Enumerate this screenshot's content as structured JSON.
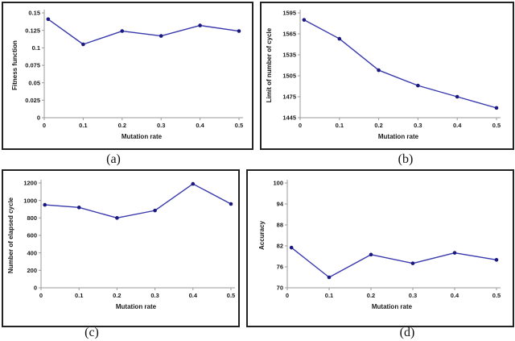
{
  "style": {
    "line_color": "#3939ae",
    "marker_color": "#191980",
    "axis_color": "#9a9a9a",
    "text_color": "#1a1a1a",
    "panel_border_color": "#232323",
    "background": "#ffffff"
  },
  "chart_data": [
    {
      "id": "a",
      "caption": "(a)",
      "type": "line",
      "xlabel": "Mutation rate",
      "ylabel": "Fitness function",
      "x": [
        0.01,
        0.1,
        0.2,
        0.3,
        0.4,
        0.5
      ],
      "values": [
        0.141,
        0.105,
        0.124,
        0.117,
        0.132,
        0.124
      ],
      "xlim": [
        0,
        0.5
      ],
      "ylim": [
        0,
        0.15
      ],
      "xtick_values": [
        0,
        0.1,
        0.2,
        0.3,
        0.4,
        0.5
      ],
      "xtick_labels": [
        "0",
        "0.1",
        "0.2",
        "0.3",
        "0.4",
        "0.5"
      ],
      "ytick_values": [
        0,
        0.025,
        0.05,
        0.075,
        0.1,
        0.125,
        0.15
      ],
      "ytick_labels": [
        "0",
        "0.025",
        "0.05",
        "0.075",
        "0.1",
        "0.125",
        "0.15"
      ],
      "grid": false,
      "legend": "none"
    },
    {
      "id": "b",
      "caption": "(b)",
      "type": "line",
      "xlabel": "Mutation rate",
      "ylabel": "Limit of number of cycle",
      "x": [
        0.01,
        0.1,
        0.2,
        0.3,
        0.4,
        0.5
      ],
      "values": [
        1585,
        1558,
        1513,
        1491,
        1475,
        1459
      ],
      "xlim": [
        0,
        0.5
      ],
      "ylim": [
        1445,
        1595
      ],
      "xtick_values": [
        0,
        0.1,
        0.2,
        0.3,
        0.4,
        0.5
      ],
      "xtick_labels": [
        "0",
        "0.1",
        "0.2",
        "0.3",
        "0.4",
        "0.5"
      ],
      "ytick_values": [
        1445,
        1475,
        1505,
        1535,
        1565,
        1595
      ],
      "ytick_labels": [
        "1445",
        "1475",
        "1505",
        "1535",
        "1565",
        "1595"
      ],
      "grid": false,
      "legend": "none"
    },
    {
      "id": "c",
      "caption": "(c)",
      "type": "line",
      "xlabel": "Mutation rate",
      "ylabel": "Number of elapsed cycle",
      "x": [
        0.01,
        0.1,
        0.2,
        0.3,
        0.4,
        0.5
      ],
      "values": [
        950,
        920,
        800,
        885,
        1190,
        960
      ],
      "xlim": [
        0,
        0.5
      ],
      "ylim": [
        0,
        1200
      ],
      "xtick_values": [
        0,
        0.1,
        0.2,
        0.3,
        0.4,
        0.5
      ],
      "xtick_labels": [
        "0",
        "0.1",
        "0.2",
        "0.3",
        "0.4",
        "0.5"
      ],
      "ytick_values": [
        0,
        200,
        400,
        600,
        800,
        1000,
        1200
      ],
      "ytick_labels": [
        "0",
        "200",
        "400",
        "600",
        "800",
        "1000",
        "1200"
      ],
      "grid": false,
      "legend": "none"
    },
    {
      "id": "d",
      "caption": "(d)",
      "type": "line",
      "xlabel": "Mutation rate",
      "ylabel": "Accuracy",
      "x": [
        0.01,
        0.1,
        0.2,
        0.3,
        0.4,
        0.5
      ],
      "values": [
        81.5,
        73,
        79.5,
        77,
        80,
        78
      ],
      "xlim": [
        0,
        0.5
      ],
      "ylim": [
        70,
        100
      ],
      "xtick_values": [
        0,
        0.1,
        0.2,
        0.3,
        0.4,
        0.5
      ],
      "xtick_labels": [
        "0",
        "0.1",
        "0.2",
        "0.3",
        "0.4",
        "0.5"
      ],
      "ytick_values": [
        70,
        76,
        82,
        88,
        94,
        100
      ],
      "ytick_labels": [
        "70",
        "76",
        "82",
        "88",
        "94",
        "100"
      ],
      "grid": false,
      "legend": "none"
    }
  ]
}
